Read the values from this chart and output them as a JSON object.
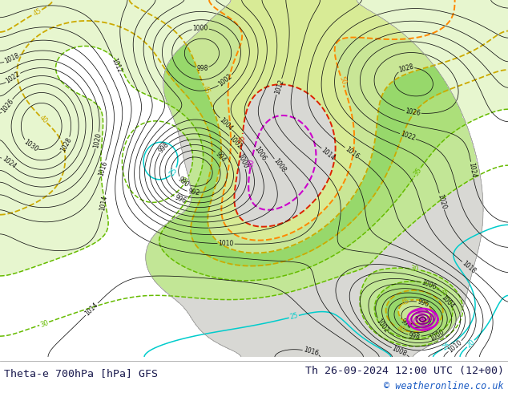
{
  "title_left": "Theta-e 700hPa [hPa] GFS",
  "title_right": "Th 26-09-2024 12:00 UTC (12+00)",
  "copyright": "© weatheronline.co.uk",
  "bg_color": "#ffffff",
  "ocean_color": "#f0f0f0",
  "land_color": "#e8e8e8",
  "label_color_left": "#1a1a4e",
  "label_color_right": "#1a1a4e",
  "copyright_color": "#1a5bc4",
  "fig_width": 6.34,
  "fig_height": 4.9,
  "dpi": 100,
  "title_fontsize": 9.5,
  "copyright_fontsize": 8.5,
  "theta_colors": {
    "15": "#00cccc",
    "20": "#00cccc",
    "25": "#00cccc",
    "30": "#88cc00",
    "35": "#88cc00",
    "40": "#ddcc00",
    "45": "#ddcc00",
    "50": "#ff8800",
    "55": "#dd2200",
    "60": "#cc00cc",
    "65": "#cc00cc"
  }
}
